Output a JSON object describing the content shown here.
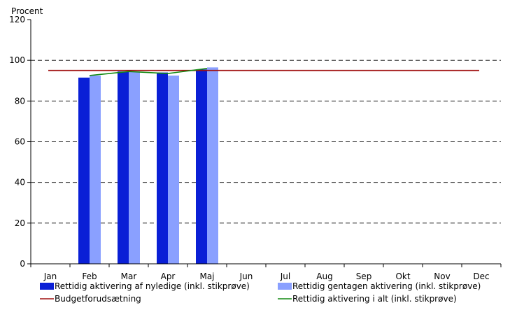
{
  "chart_data": {
    "type": "bar",
    "ylabel": "Procent",
    "ylim": [
      0,
      120
    ],
    "yticks": [
      0,
      20,
      40,
      60,
      80,
      100,
      120
    ],
    "grid": "dashed-horizontal",
    "legend_position": "bottom",
    "categories": [
      "Jan",
      "Feb",
      "Mar",
      "Apr",
      "Maj",
      "Jun",
      "Jul",
      "Aug",
      "Sep",
      "Okt",
      "Nov",
      "Dec"
    ],
    "series": [
      {
        "name": "Rettidig aktivering af nyledige (inkl. stikprøve)",
        "kind": "bar",
        "color": "#0a1fd6",
        "values": [
          null,
          91.5,
          94.5,
          94,
          95.5,
          null,
          null,
          null,
          null,
          null,
          null,
          null
        ]
      },
      {
        "name": "Rettidig gentagen aktivering (inkl. stikprøve)",
        "kind": "bar",
        "color": "#8aa0ff",
        "values": [
          null,
          92.5,
          94.5,
          92.5,
          96.5,
          null,
          null,
          null,
          null,
          null,
          null,
          null
        ]
      },
      {
        "name": "Budgetforudsætning",
        "kind": "line",
        "color": "#a01010",
        "values": [
          95,
          95,
          95,
          95,
          95,
          95,
          95,
          95,
          95,
          95,
          95,
          95
        ]
      },
      {
        "name": "Rettidig aktivering i alt (inkl. stikprøve)",
        "kind": "line",
        "color": "#138a13",
        "values": [
          null,
          92.5,
          94.5,
          93.5,
          96,
          null,
          null,
          null,
          null,
          null,
          null,
          null
        ]
      }
    ]
  }
}
